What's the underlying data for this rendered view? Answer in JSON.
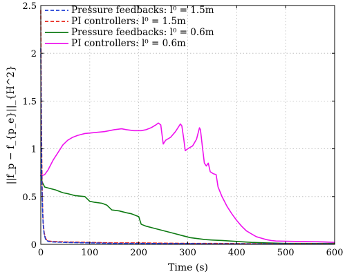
{
  "chart_data": {
    "type": "line",
    "xlabel": "Time (s)",
    "ylabel": "||f_p − f_{p_e}||_{H^2}",
    "xlim": [
      0,
      600
    ],
    "ylim": [
      0,
      2.5
    ],
    "x_ticks": [
      "0",
      "100",
      "200",
      "300",
      "400",
      "500",
      "600"
    ],
    "y_ticks": [
      "0",
      "0.5",
      "1",
      "1.5",
      "2",
      "2.5"
    ],
    "x_tick_values": [
      0,
      100,
      200,
      300,
      400,
      500,
      600
    ],
    "y_tick_values": [
      0,
      0.5,
      1,
      1.5,
      2,
      2.5
    ],
    "grid": true,
    "legend_position": "top-left",
    "series": [
      {
        "name": "Pressure feedbacks: l⁰ = 1.5m",
        "color": "#1f3fd6",
        "dash": "dashed",
        "points": [
          [
            0,
            2.05
          ],
          [
            1,
            1.2
          ],
          [
            2,
            0.7
          ],
          [
            3,
            0.45
          ],
          [
            4,
            0.3
          ],
          [
            5,
            0.2
          ],
          [
            7,
            0.1
          ],
          [
            10,
            0.05
          ],
          [
            15,
            0.03
          ],
          [
            25,
            0.025
          ],
          [
            50,
            0.02
          ],
          [
            100,
            0.015
          ],
          [
            150,
            0.01
          ],
          [
            200,
            0.01
          ],
          [
            250,
            0.008
          ],
          [
            300,
            0.008
          ],
          [
            350,
            0.005
          ],
          [
            400,
            0.005
          ],
          [
            450,
            0.004
          ],
          [
            500,
            0.004
          ],
          [
            550,
            0.003
          ],
          [
            600,
            0.003
          ]
        ]
      },
      {
        "name": "PI controllers: l⁰ = 1.5m",
        "color": "#e8251a",
        "dash": "dashed",
        "points": [
          [
            0,
            2.45
          ],
          [
            1,
            1.5
          ],
          [
            2,
            0.9
          ],
          [
            3,
            0.55
          ],
          [
            4,
            0.35
          ],
          [
            5,
            0.22
          ],
          [
            7,
            0.12
          ],
          [
            10,
            0.06
          ],
          [
            15,
            0.035
          ],
          [
            25,
            0.03
          ],
          [
            50,
            0.025
          ],
          [
            100,
            0.02
          ],
          [
            150,
            0.015
          ],
          [
            200,
            0.015
          ],
          [
            250,
            0.012
          ],
          [
            300,
            0.01
          ],
          [
            350,
            0.01
          ],
          [
            400,
            0.008
          ],
          [
            450,
            0.006
          ],
          [
            500,
            0.005
          ],
          [
            550,
            0.005
          ],
          [
            600,
            0.004
          ]
        ]
      },
      {
        "name": "Pressure feedbacks: l⁰ = 0.6m",
        "color": "#0d7a12",
        "dash": "solid",
        "points": [
          [
            0,
            0.72
          ],
          [
            3,
            0.65
          ],
          [
            8,
            0.6
          ],
          [
            15,
            0.59
          ],
          [
            30,
            0.57
          ],
          [
            45,
            0.54
          ],
          [
            55,
            0.53
          ],
          [
            70,
            0.51
          ],
          [
            90,
            0.5
          ],
          [
            100,
            0.45
          ],
          [
            110,
            0.44
          ],
          [
            125,
            0.43
          ],
          [
            135,
            0.41
          ],
          [
            145,
            0.36
          ],
          [
            160,
            0.35
          ],
          [
            175,
            0.33
          ],
          [
            185,
            0.32
          ],
          [
            195,
            0.3
          ],
          [
            200,
            0.29
          ],
          [
            205,
            0.21
          ],
          [
            215,
            0.19
          ],
          [
            230,
            0.17
          ],
          [
            245,
            0.15
          ],
          [
            260,
            0.13
          ],
          [
            275,
            0.11
          ],
          [
            290,
            0.09
          ],
          [
            305,
            0.07
          ],
          [
            320,
            0.06
          ],
          [
            335,
            0.05
          ],
          [
            350,
            0.045
          ],
          [
            370,
            0.04
          ],
          [
            400,
            0.03
          ],
          [
            430,
            0.02
          ],
          [
            460,
            0.015
          ],
          [
            500,
            0.01
          ],
          [
            550,
            0.01
          ],
          [
            600,
            0.01
          ]
        ]
      },
      {
        "name": "PI controllers: l⁰ = 0.6m",
        "color": "#ee12ee",
        "dash": "solid",
        "points": [
          [
            0,
            0.75
          ],
          [
            3,
            0.72
          ],
          [
            8,
            0.73
          ],
          [
            15,
            0.78
          ],
          [
            25,
            0.88
          ],
          [
            35,
            0.96
          ],
          [
            45,
            1.04
          ],
          [
            55,
            1.09
          ],
          [
            65,
            1.12
          ],
          [
            75,
            1.14
          ],
          [
            90,
            1.16
          ],
          [
            110,
            1.17
          ],
          [
            130,
            1.18
          ],
          [
            150,
            1.2
          ],
          [
            165,
            1.21
          ],
          [
            175,
            1.2
          ],
          [
            190,
            1.19
          ],
          [
            205,
            1.19
          ],
          [
            215,
            1.2
          ],
          [
            225,
            1.22
          ],
          [
            235,
            1.25
          ],
          [
            240,
            1.27
          ],
          [
            245,
            1.25
          ],
          [
            250,
            1.05
          ],
          [
            255,
            1.09
          ],
          [
            265,
            1.12
          ],
          [
            275,
            1.18
          ],
          [
            285,
            1.26
          ],
          [
            288,
            1.24
          ],
          [
            292,
            1.1
          ],
          [
            295,
            0.98
          ],
          [
            300,
            1.0
          ],
          [
            310,
            1.03
          ],
          [
            318,
            1.1
          ],
          [
            324,
            1.22
          ],
          [
            326,
            1.2
          ],
          [
            330,
            1.02
          ],
          [
            334,
            0.85
          ],
          [
            338,
            0.82
          ],
          [
            342,
            0.85
          ],
          [
            346,
            0.76
          ],
          [
            352,
            0.74
          ],
          [
            358,
            0.73
          ],
          [
            362,
            0.6
          ],
          [
            370,
            0.5
          ],
          [
            380,
            0.4
          ],
          [
            390,
            0.32
          ],
          [
            400,
            0.25
          ],
          [
            410,
            0.19
          ],
          [
            420,
            0.14
          ],
          [
            430,
            0.11
          ],
          [
            440,
            0.08
          ],
          [
            450,
            0.065
          ],
          [
            460,
            0.05
          ],
          [
            470,
            0.04
          ],
          [
            480,
            0.035
          ],
          [
            500,
            0.032
          ],
          [
            520,
            0.03
          ],
          [
            540,
            0.03
          ],
          [
            560,
            0.028
          ],
          [
            580,
            0.025
          ],
          [
            600,
            0.02
          ]
        ]
      }
    ]
  }
}
